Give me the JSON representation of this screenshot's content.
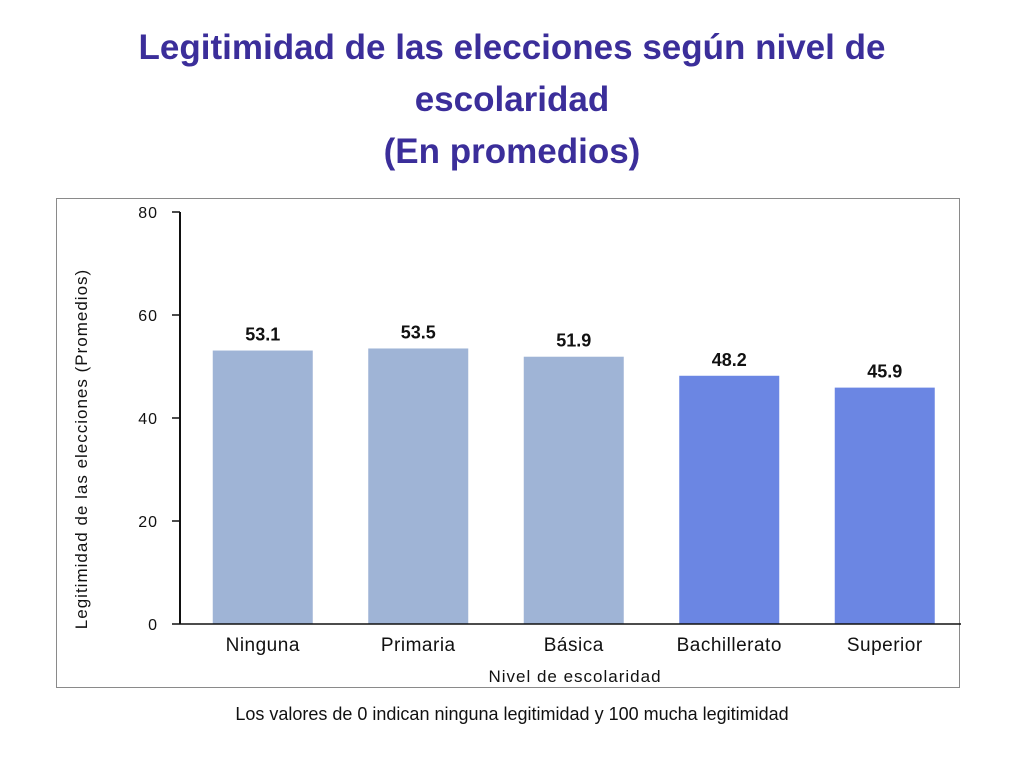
{
  "title": {
    "line1": "Legitimidad de las elecciones según nivel de",
    "line2": "escolaridad",
    "line3": "(En promedios)"
  },
  "footnote": "Los valores de 0 indican ninguna legitimidad y 100 mucha legitimidad",
  "colors": {
    "title": "#3b2e9a",
    "bar_light": "#9fb4d6",
    "bar_dark": "#6b86e3"
  },
  "chart_data": {
    "type": "bar",
    "categories": [
      "Ninguna",
      "Primaria",
      "Básica",
      "Bachillerato",
      "Superior"
    ],
    "values": [
      53.1,
      53.5,
      51.9,
      48.2,
      45.9
    ],
    "data_labels": [
      "53.1",
      "53.5",
      "51.9",
      "48.2",
      "45.9"
    ],
    "bar_colors": [
      "#9fb4d6",
      "#9fb4d6",
      "#9fb4d6",
      "#6b86e3",
      "#6b86e3"
    ],
    "xlabel": "Nivel de escolaridad",
    "ylabel": "Legitimidad de las elecciones (Promedios)",
    "ylim": [
      0,
      80
    ],
    "yticks": [
      0,
      20,
      40,
      60,
      80
    ],
    "grid": false,
    "legend": "none"
  }
}
